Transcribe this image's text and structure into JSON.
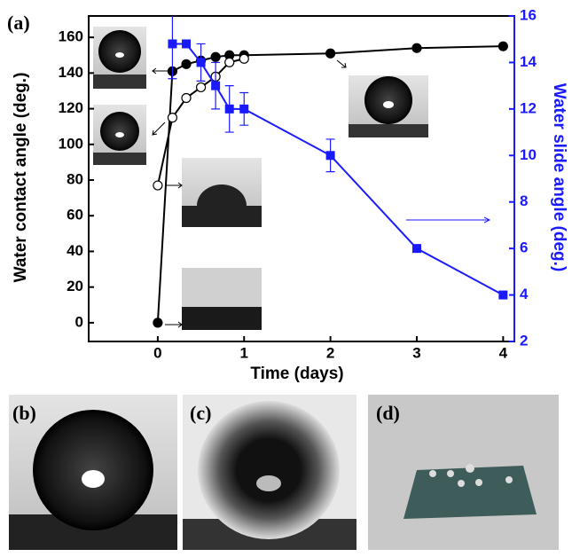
{
  "chart_data": {
    "type": "line",
    "panel_label": "(a)",
    "x_label": "Time (days)",
    "y_label": "Water contact angle (deg.)",
    "y2_label": "Water slide angle (deg.)",
    "xlim": [
      -0.8,
      4.13
    ],
    "xticks": [
      0,
      1,
      2,
      3,
      4
    ],
    "ylim": [
      -10.5,
      172
    ],
    "yticks": [
      0,
      20,
      40,
      60,
      80,
      100,
      120,
      140,
      160
    ],
    "y2lim": [
      2,
      16
    ],
    "y2ticks": [
      2,
      4,
      6,
      8,
      10,
      12,
      14,
      16
    ],
    "series": [
      {
        "color": "#000000",
        "marker": "filled-circle",
        "x": [
          0,
          0.17,
          0.33,
          0.5,
          0.67,
          0.83,
          1,
          2,
          3,
          4
        ],
        "values": [
          0,
          141,
          145,
          147,
          149,
          150,
          150,
          151,
          154,
          155
        ]
      },
      {
        "color": "#000000",
        "marker": "open-circle",
        "x": [
          0,
          0.17,
          0.33,
          0.5,
          0.67,
          0.83,
          1
        ],
        "values": [
          77,
          115,
          126,
          132,
          138,
          146,
          148
        ]
      },
      {
        "color": "#1a1aff",
        "marker": "square",
        "axis": "y2",
        "x": [
          0.17,
          0.33,
          0.5,
          0.67,
          0.83,
          1,
          2,
          3,
          4
        ],
        "values": [
          14.8,
          14.8,
          14,
          13,
          12,
          12,
          10,
          6,
          4
        ],
        "errors": [
          1.5,
          null,
          0.8,
          1,
          1,
          0.7,
          0.7,
          null,
          null
        ]
      }
    ]
  },
  "photos": {
    "labels": [
      "(b)",
      "(c)",
      "(d)"
    ]
  }
}
